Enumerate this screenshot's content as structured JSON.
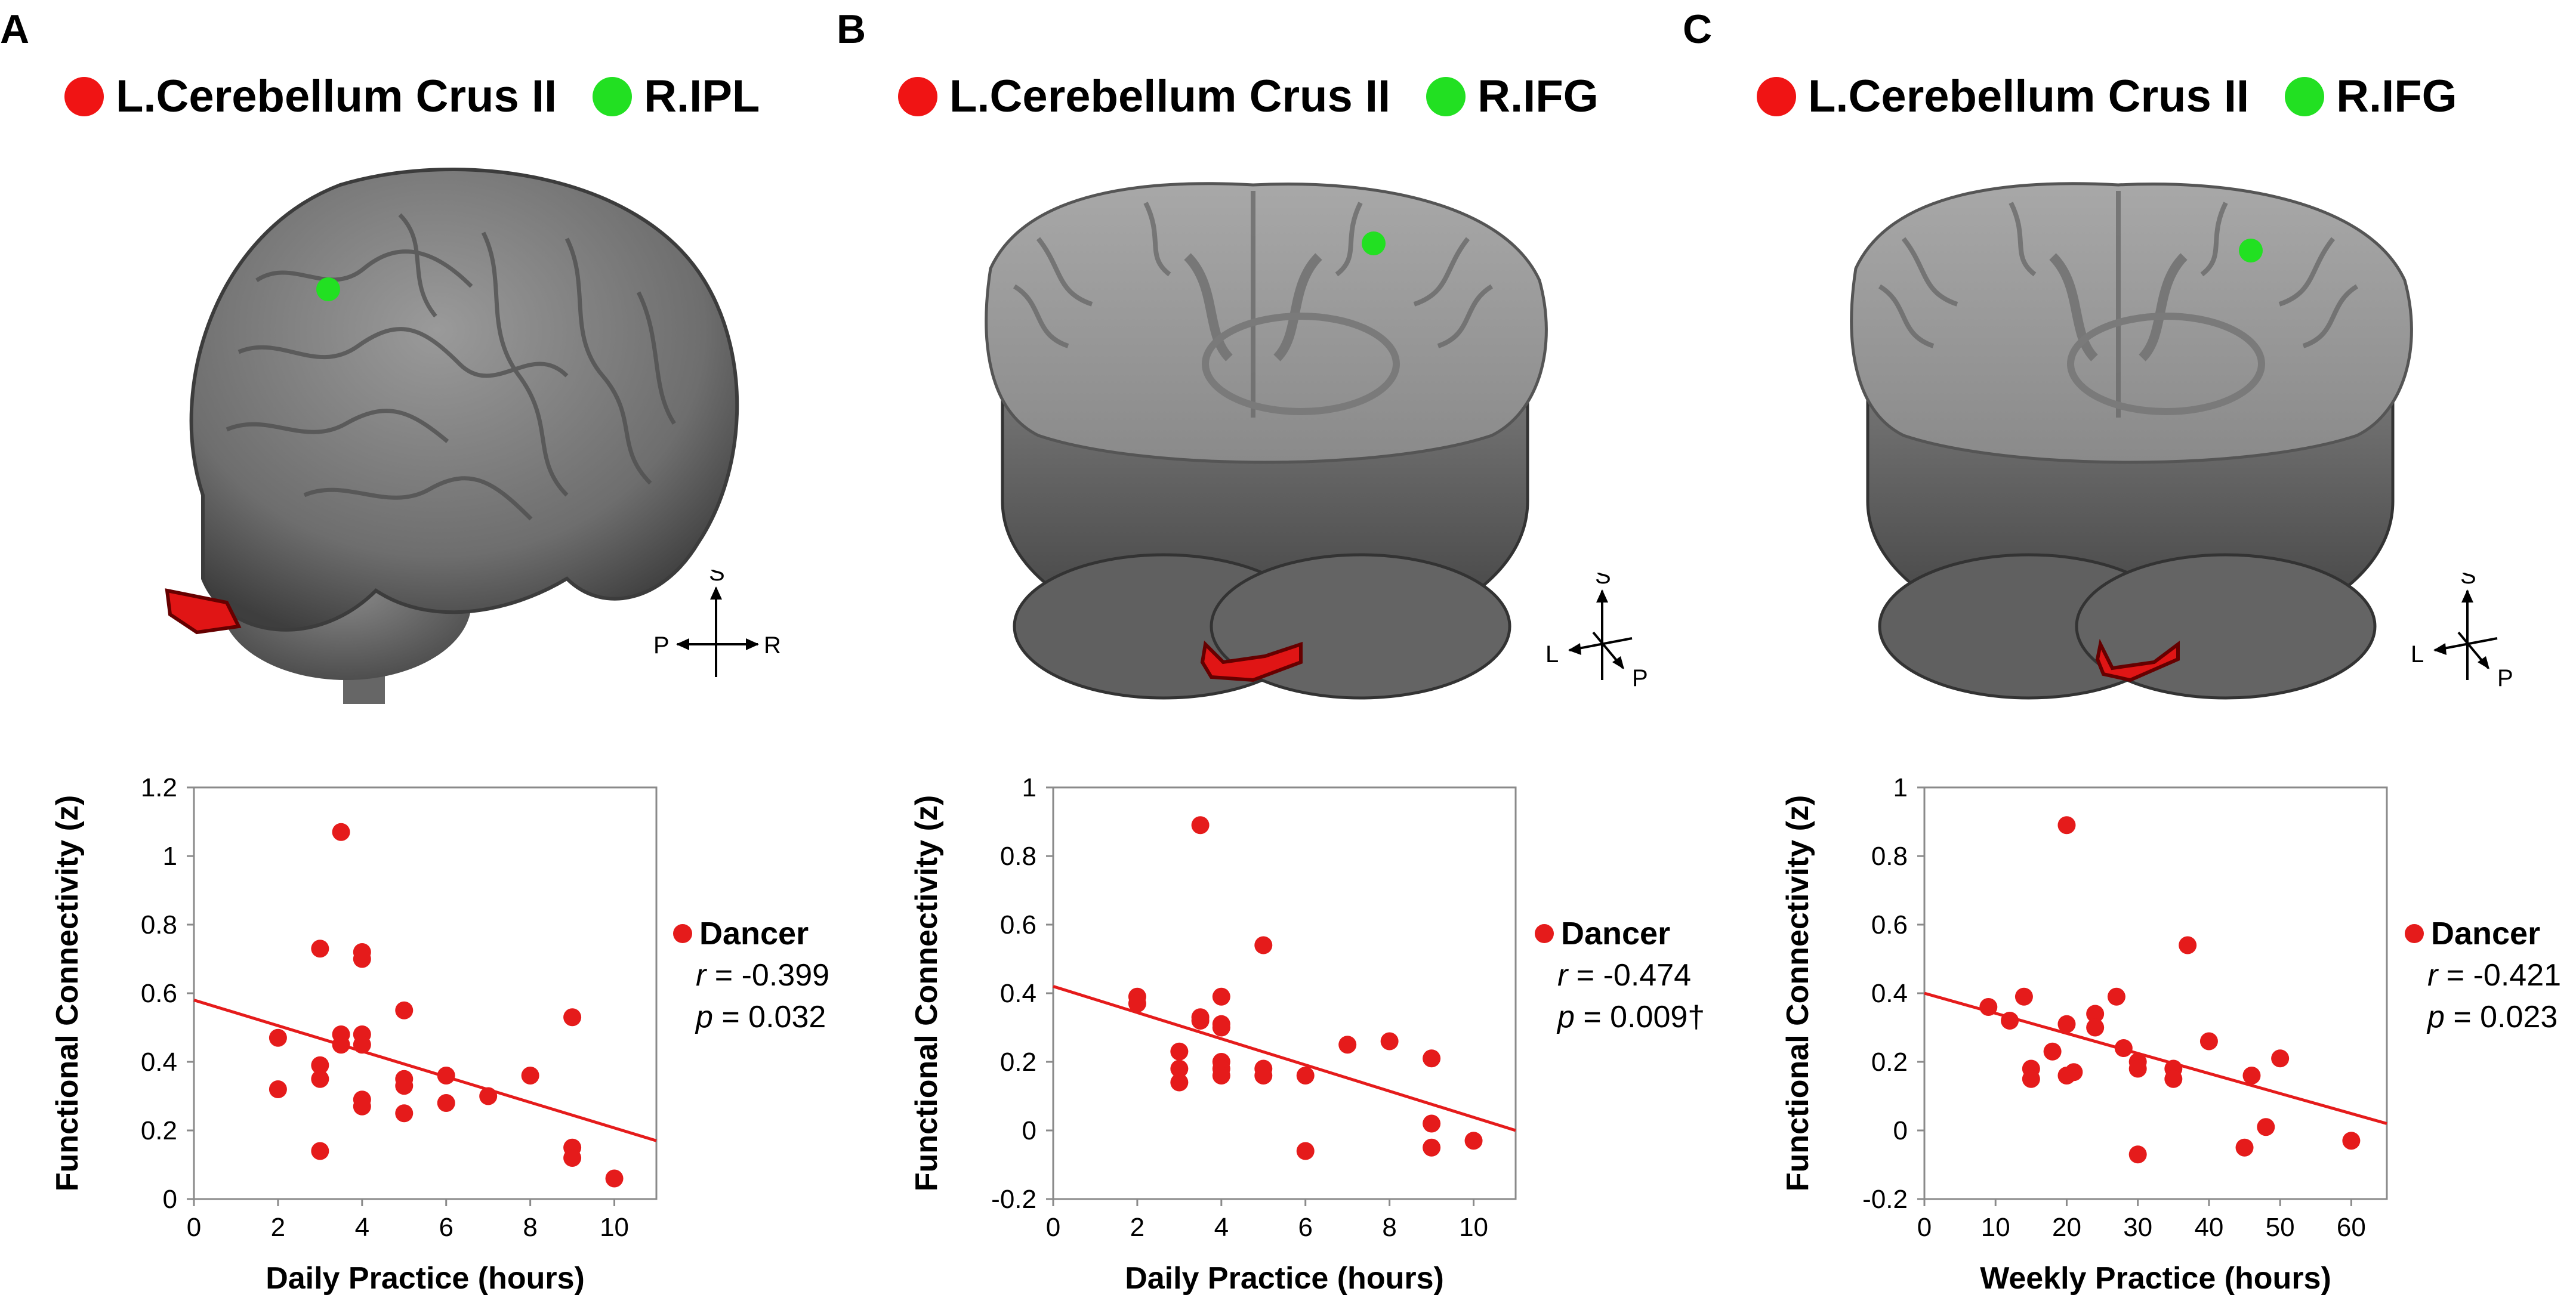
{
  "colors": {
    "point": "#e51b1b",
    "roi_red": "#f01414",
    "roi_green": "#22e022",
    "brain": "#7c7c7c"
  },
  "panels": [
    {
      "letter": "A",
      "legend": {
        "region1": "L.Cerebellum Crus II",
        "region2": "R.IPL"
      },
      "orientation": [
        "S",
        "P",
        "R"
      ],
      "stats": {
        "group": "Dancer",
        "r_label": "r",
        "r_value": " = -0.399",
        "p_label": "p",
        "p_value": " = 0.032"
      }
    },
    {
      "letter": "B",
      "legend": {
        "region1": "L.Cerebellum Crus II",
        "region2": "R.IFG"
      },
      "orientation": [
        "S",
        "L",
        "P"
      ],
      "stats": {
        "group": "Dancer",
        "r_label": "r",
        "r_value": " = -0.474",
        "p_label": "p",
        "p_value": " = 0.009†"
      }
    },
    {
      "letter": "C",
      "legend": {
        "region1": "L.Cerebellum Crus II",
        "region2": "R.IFG"
      },
      "orientation": [
        "S",
        "L",
        "P"
      ],
      "stats": {
        "group": "Dancer",
        "r_label": "r",
        "r_value": " = -0.421",
        "p_label": "p",
        "p_value": " = 0.023"
      }
    }
  ],
  "chart_data": [
    {
      "type": "scatter",
      "title": "",
      "xlabel": "Daily Practice (hours)",
      "ylabel": "Functional Connectivity (z)",
      "xlim": [
        0,
        11
      ],
      "ylim": [
        0,
        1.2
      ],
      "xticks": [
        0,
        2,
        4,
        6,
        8,
        10
      ],
      "yticks": [
        0,
        0.2,
        0.4,
        0.6,
        0.8,
        1,
        1.2
      ],
      "xtick_labels": [
        "0",
        "2",
        "4",
        "6",
        "8",
        "10"
      ],
      "ytick_labels": [
        "0",
        "0.2",
        "0.4",
        "0.6",
        "0.8",
        "1",
        "1.2"
      ],
      "series": [
        {
          "name": "Dancer",
          "points": [
            [
              2,
              0.47
            ],
            [
              2,
              0.32
            ],
            [
              3,
              0.73
            ],
            [
              3,
              0.39
            ],
            [
              3,
              0.35
            ],
            [
              3,
              0.14
            ],
            [
              3.5,
              1.07
            ],
            [
              3.5,
              0.48
            ],
            [
              3.5,
              0.45
            ],
            [
              4,
              0.72
            ],
            [
              4,
              0.7
            ],
            [
              4,
              0.48
            ],
            [
              4,
              0.45
            ],
            [
              4,
              0.29
            ],
            [
              4,
              0.27
            ],
            [
              5,
              0.55
            ],
            [
              5,
              0.35
            ],
            [
              5,
              0.33
            ],
            [
              5,
              0.25
            ],
            [
              6,
              0.36
            ],
            [
              6,
              0.28
            ],
            [
              7,
              0.3
            ],
            [
              8,
              0.36
            ],
            [
              9,
              0.53
            ],
            [
              9,
              0.15
            ],
            [
              9,
              0.12
            ],
            [
              10,
              0.06
            ]
          ]
        }
      ],
      "trendline": {
        "x": [
          0,
          11
        ],
        "y": [
          0.58,
          0.17
        ]
      }
    },
    {
      "type": "scatter",
      "title": "",
      "xlabel": "Daily Practice (hours)",
      "ylabel": "Functional Connectivity (z)",
      "xlim": [
        0,
        11
      ],
      "ylim": [
        -0.2,
        1
      ],
      "xticks": [
        0,
        2,
        4,
        6,
        8,
        10
      ],
      "yticks": [
        -0.2,
        0,
        0.2,
        0.4,
        0.6,
        0.8,
        1
      ],
      "xtick_labels": [
        "0",
        "2",
        "4",
        "6",
        "8",
        "10"
      ],
      "ytick_labels": [
        "-0.2",
        "0",
        "0.2",
        "0.4",
        "0.6",
        "0.8",
        "1"
      ],
      "series": [
        {
          "name": "Dancer",
          "points": [
            [
              2,
              0.39
            ],
            [
              2,
              0.37
            ],
            [
              3,
              0.23
            ],
            [
              3,
              0.18
            ],
            [
              3,
              0.14
            ],
            [
              3.5,
              0.89
            ],
            [
              3.5,
              0.33
            ],
            [
              3.5,
              0.32
            ],
            [
              4,
              0.39
            ],
            [
              4,
              0.31
            ],
            [
              4,
              0.3
            ],
            [
              4,
              0.2
            ],
            [
              4,
              0.18
            ],
            [
              4,
              0.16
            ],
            [
              5,
              0.54
            ],
            [
              5,
              0.18
            ],
            [
              5,
              0.16
            ],
            [
              6,
              0.16
            ],
            [
              6,
              -0.06
            ],
            [
              7,
              0.25
            ],
            [
              8,
              0.26
            ],
            [
              9,
              0.21
            ],
            [
              9,
              0.02
            ],
            [
              9,
              -0.05
            ],
            [
              10,
              -0.03
            ]
          ]
        }
      ],
      "trendline": {
        "x": [
          0,
          11
        ],
        "y": [
          0.42,
          0.0
        ]
      }
    },
    {
      "type": "scatter",
      "title": "",
      "xlabel": "Weekly Practice (hours)",
      "ylabel": "Functional Connectivity (z)",
      "xlim": [
        0,
        65
      ],
      "ylim": [
        -0.2,
        1
      ],
      "xticks": [
        0,
        10,
        20,
        30,
        40,
        50,
        60
      ],
      "yticks": [
        -0.2,
        0,
        0.2,
        0.4,
        0.6,
        0.8,
        1
      ],
      "xtick_labels": [
        "0",
        "10",
        "20",
        "30",
        "40",
        "50",
        "60"
      ],
      "ytick_labels": [
        "-0.2",
        "0",
        "0.2",
        "0.4",
        "0.6",
        "0.8",
        "1"
      ],
      "series": [
        {
          "name": "Dancer",
          "points": [
            [
              9,
              0.36
            ],
            [
              12,
              0.32
            ],
            [
              14,
              0.39
            ],
            [
              15,
              0.18
            ],
            [
              15,
              0.15
            ],
            [
              18,
              0.23
            ],
            [
              20,
              0.89
            ],
            [
              20,
              0.31
            ],
            [
              20,
              0.16
            ],
            [
              21,
              0.17
            ],
            [
              24,
              0.34
            ],
            [
              24,
              0.3
            ],
            [
              27,
              0.39
            ],
            [
              28,
              0.24
            ],
            [
              30,
              0.2
            ],
            [
              30,
              0.18
            ],
            [
              30,
              -0.07
            ],
            [
              35,
              0.18
            ],
            [
              35,
              0.15
            ],
            [
              37,
              0.54
            ],
            [
              40,
              0.26
            ],
            [
              45,
              -0.05
            ],
            [
              46,
              0.16
            ],
            [
              48,
              0.01
            ],
            [
              50,
              0.21
            ],
            [
              60,
              -0.03
            ]
          ]
        }
      ],
      "trendline": {
        "x": [
          0,
          65
        ],
        "y": [
          0.4,
          0.02
        ]
      }
    }
  ]
}
